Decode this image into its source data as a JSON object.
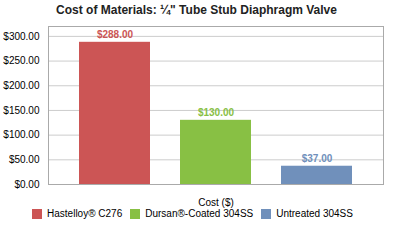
{
  "chart_data": {
    "type": "bar",
    "title": "Cost of Materials: ¼\" Tube Stub Diaphragm Valve",
    "xlabel": "Cost ($)",
    "categories": [
      "Hastelloy® C276",
      "Dursan®-Coated 304SS",
      "Untreated 304SS"
    ],
    "values": [
      288,
      130,
      37
    ],
    "value_labels": [
      "$288.00",
      "$130.00",
      "$37.00"
    ],
    "data_labels": true,
    "colors": [
      "#cc5555",
      "#88c044",
      "#7090bb"
    ],
    "ylim": [
      0,
      320
    ],
    "yticks": [
      {
        "value": 0,
        "label": "$0.00"
      },
      {
        "value": 50,
        "label": "$50.00"
      },
      {
        "value": 100,
        "label": "$100.00"
      },
      {
        "value": 150,
        "label": "$150.00"
      },
      {
        "value": 200,
        "label": "$200.00"
      },
      {
        "value": 250,
        "label": "$250.00"
      },
      {
        "value": 300,
        "label": "$300.00"
      }
    ],
    "grid": true,
    "legend": "bottom",
    "tick_labels": "y"
  }
}
